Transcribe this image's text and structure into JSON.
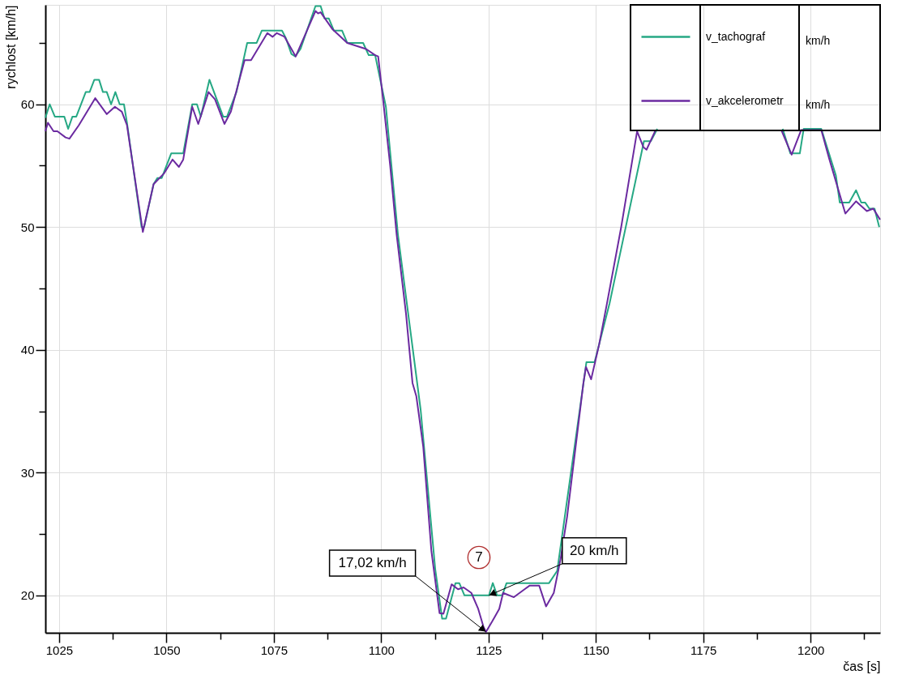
{
  "chart_data": {
    "type": "line",
    "xlabel": "čas [s]",
    "ylabel": "rychlost [km/h]",
    "xlim": [
      1021.8,
      1216.2
    ],
    "ylim": [
      16.95,
      68.1
    ],
    "xticks": [
      1025,
      {
        "value": 1037.5,
        "label": null
      },
      1050,
      {
        "value": 1062.5,
        "label": null
      },
      1075,
      {
        "value": 1087.5,
        "label": null
      },
      1100,
      {
        "value": 1112.5,
        "label": null
      },
      1125,
      {
        "value": 1137.5,
        "label": null
      },
      1150,
      {
        "value": 1162.5,
        "label": null
      },
      1175,
      {
        "value": 1187.5,
        "label": null
      },
      1200,
      {
        "value": 1212.5,
        "label": null
      }
    ],
    "yticks": [
      20,
      {
        "value": 25,
        "label": null
      },
      30,
      {
        "value": 35,
        "label": null
      },
      40,
      {
        "value": 45,
        "label": null
      },
      50,
      {
        "value": 55,
        "label": null
      },
      60,
      {
        "value": 65,
        "label": null
      }
    ],
    "grid": true,
    "legend": "top right",
    "line_style": "solid",
    "marker": "none",
    "series": [
      {
        "name": "v_tachograf",
        "color": "#26a884",
        "x": [
          1021.8,
          1022.8,
          1024.0,
          1026.2,
          1027.1,
          1028.1,
          1029.0,
          1031.2,
          1032.1,
          1033.2,
          1034.3,
          1035.2,
          1036.1,
          1037.1,
          1038.1,
          1039.1,
          1040.1,
          1040.8,
          1044.2,
          1044.8,
          1047.0,
          1047.9,
          1048.9,
          1051.1,
          1053.9,
          1056.0,
          1057.1,
          1058.0,
          1060.0,
          1063.2,
          1064.1,
          1066.3,
          1068.8,
          1071.0,
          1072.2,
          1076.9,
          1077.8,
          1079.1,
          1080.0,
          1081.2,
          1084.7,
          1085.9,
          1086.8,
          1087.8,
          1089.0,
          1090.9,
          1092.1,
          1095.8,
          1097.1,
          1098.6,
          1101.1,
          1103.9,
          1109.2,
          1112.6,
          1114.2,
          1115.1,
          1117.3,
          1118.2,
          1119.4,
          1125.1,
          1126.0,
          1127.0,
          1128.2,
          1129.2,
          1139.1,
          1141.0,
          1147.8,
          1149.7,
          1153.2,
          1161.2,
          1162.8,
          1164.3,
          1180.0,
          1193.5,
          1195.3,
          1197.5,
          1198.4,
          1202.5,
          1205.9,
          1206.8,
          1209.0,
          1210.6,
          1211.8,
          1212.7,
          1213.7,
          1214.9,
          1216.0
        ],
        "values": [
          58.9,
          60,
          59,
          59,
          58,
          59,
          59,
          61,
          61,
          62,
          62,
          61,
          61,
          60,
          61,
          60,
          60,
          58.5,
          50,
          50,
          53.5,
          54,
          54,
          56,
          56,
          60,
          60,
          59,
          62,
          59,
          59,
          61,
          65,
          65,
          66,
          66,
          65.4,
          64.1,
          63.9,
          64.5,
          68,
          68,
          67,
          67,
          66,
          66,
          65,
          65,
          64,
          64,
          59.8,
          49.4,
          35.1,
          22.1,
          18.1,
          18.1,
          21,
          21,
          20,
          20,
          21,
          20,
          20,
          21,
          21,
          22,
          39,
          39,
          43.8,
          57,
          57,
          58,
          null,
          58,
          56,
          56,
          58,
          58,
          54.2,
          52,
          52,
          53,
          52,
          52,
          51.5,
          51.5,
          50
        ]
      },
      {
        "name": "v_akcelerometr",
        "color": "#6b2aa0",
        "x": [
          1021.8,
          1022.4,
          1023.7,
          1024.6,
          1026.5,
          1027.4,
          1029.6,
          1033.4,
          1036.1,
          1038.0,
          1039.6,
          1040.8,
          1044.5,
          1047.0,
          1049.5,
          1051.4,
          1052.9,
          1053.9,
          1056.0,
          1057.4,
          1059.8,
          1061.3,
          1063.5,
          1065.0,
          1068.2,
          1069.7,
          1073.5,
          1074.7,
          1075.7,
          1077.5,
          1080.1,
          1084.7,
          1085.3,
          1085.9,
          1088.7,
          1092.1,
          1096.5,
          1098.6,
          1099.3,
          1100.5,
          1102.1,
          1103.6,
          1105.8,
          1107.3,
          1108.2,
          1109.8,
          1111.7,
          1113.6,
          1114.5,
          1116.4,
          1117.9,
          1119.2,
          1121.0,
          1122.6,
          1123.8,
          1124.4,
          1125.9,
          1127.5,
          1128.4,
          1130.9,
          1133.4,
          1134.6,
          1136.8,
          1138.4,
          1140.2,
          1141.8,
          1143.3,
          1147.1,
          1147.7,
          1148.9,
          1150.8,
          1152.6,
          1155.9,
          1159.6,
          1161.1,
          1161.8,
          1163.9,
          1180.0,
          1193.2,
          1195.6,
          1197.8,
          1202.5,
          1204.4,
          1208.1,
          1210.6,
          1213.1,
          1214.6,
          1216.2
        ],
        "values": [
          57.8,
          58.5,
          57.8,
          57.8,
          57.3,
          57.2,
          58.3,
          60.5,
          59.2,
          59.8,
          59.4,
          58.3,
          49.6,
          53.5,
          54.4,
          55.5,
          54.9,
          55.5,
          59.8,
          58.4,
          61.0,
          60.4,
          58.4,
          59.4,
          63.6,
          63.6,
          65.8,
          65.5,
          65.8,
          65.5,
          63.9,
          67.6,
          67.4,
          67.5,
          66.1,
          65.0,
          64.5,
          64.0,
          63.9,
          60.2,
          55.0,
          49.4,
          42.9,
          37.3,
          36.2,
          32.1,
          23.6,
          18.55,
          18.5,
          20.9,
          20.5,
          20.65,
          20.2,
          18.9,
          17.47,
          17.02,
          17.9,
          18.9,
          20.2,
          19.85,
          20.5,
          20.8,
          20.8,
          19.1,
          20.2,
          23.0,
          26.4,
          37.3,
          38.6,
          37.6,
          40.5,
          43.8,
          50.0,
          57.8,
          56.5,
          56.3,
          57.9,
          null,
          57.9,
          55.9,
          57.9,
          57.9,
          55.5,
          51.1,
          52.1,
          51.3,
          51.5,
          50.6
        ]
      }
    ],
    "annotations": [
      "km/h",
      "km/h",
      {
        "text": "17,02 km/h",
        "x": 1124.4,
        "y": 17.02
      },
      {
        "text": "20 km/h",
        "x": 1125.1,
        "y": 20
      },
      "7"
    ]
  }
}
